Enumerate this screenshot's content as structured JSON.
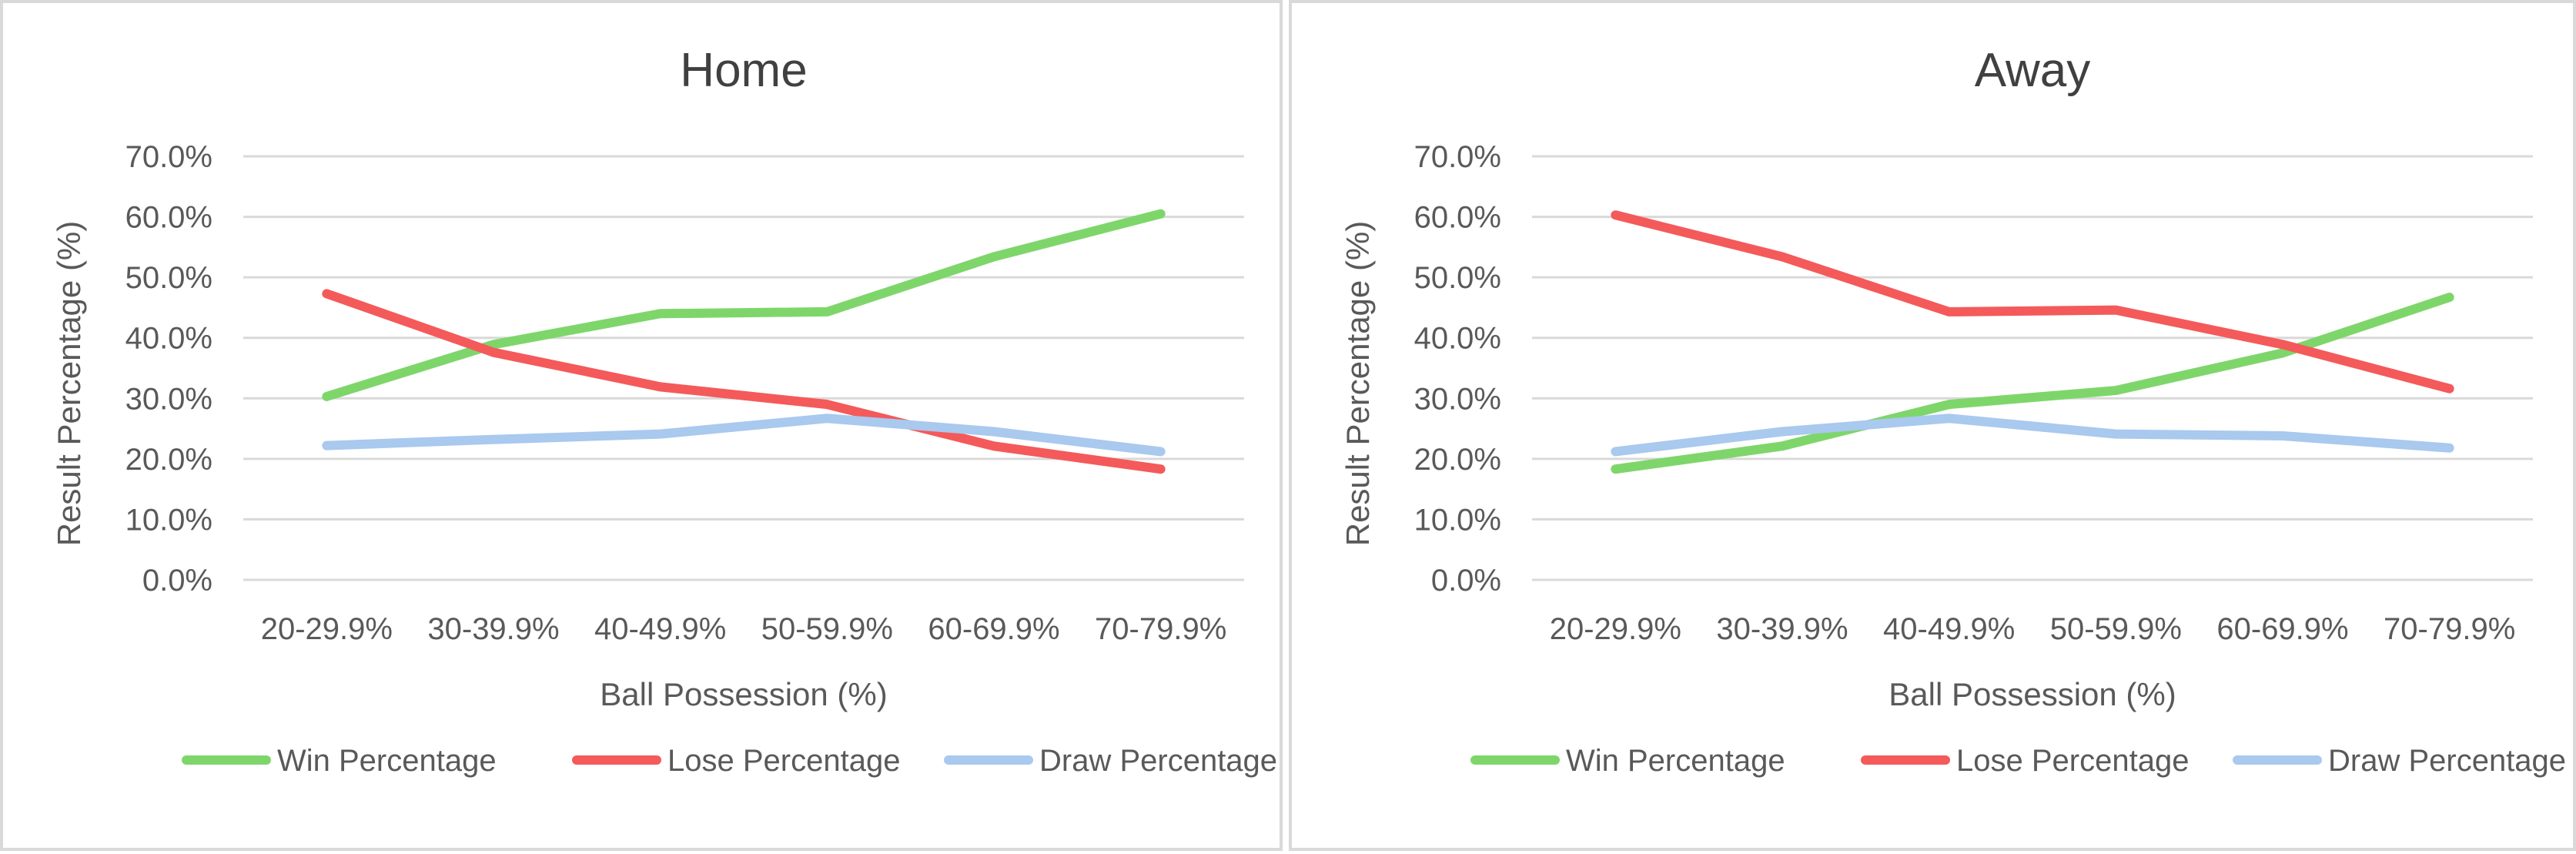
{
  "chart_data": [
    {
      "type": "line",
      "title": "Home",
      "xlabel": "Ball Possession (%)",
      "ylabel": "Result Percentage (%)",
      "categories": [
        "20-29.9%",
        "30-39.9%",
        "40-49.9%",
        "50-59.9%",
        "60-69.9%",
        "70-79.9%"
      ],
      "ylim": [
        0,
        70
      ],
      "yticks": [
        "0.0%",
        "10.0%",
        "20.0%",
        "30.0%",
        "40.0%",
        "50.0%",
        "60.0%",
        "70.0%"
      ],
      "grid": true,
      "legend": "bottom",
      "series": [
        {
          "name": "Win Percentage",
          "color": "#7ed66b",
          "values": [
            30.3,
            38.9,
            44.0,
            44.3,
            53.4,
            60.5
          ]
        },
        {
          "name": "Lose Percentage",
          "color": "#f45a5a",
          "values": [
            47.3,
            37.6,
            31.9,
            29.0,
            22.1,
            18.3
          ]
        },
        {
          "name": "Draw Percentage",
          "color": "#a9c9ee",
          "values": [
            22.2,
            23.2,
            24.1,
            26.7,
            24.5,
            21.2
          ]
        }
      ]
    },
    {
      "type": "line",
      "title": "Away",
      "xlabel": "Ball Possession (%)",
      "ylabel": "Result Percentage (%)",
      "categories": [
        "20-29.9%",
        "30-39.9%",
        "40-49.9%",
        "50-59.9%",
        "60-69.9%",
        "70-79.9%"
      ],
      "ylim": [
        0,
        70
      ],
      "yticks": [
        "0.0%",
        "10.0%",
        "20.0%",
        "30.0%",
        "40.0%",
        "50.0%",
        "60.0%",
        "70.0%"
      ],
      "grid": true,
      "legend": "bottom",
      "series": [
        {
          "name": "Win Percentage",
          "color": "#7ed66b",
          "values": [
            18.3,
            22.1,
            29.0,
            31.3,
            37.5,
            46.7
          ]
        },
        {
          "name": "Lose Percentage",
          "color": "#f45a5a",
          "values": [
            60.3,
            53.4,
            44.3,
            44.6,
            38.9,
            31.6
          ]
        },
        {
          "name": "Draw Percentage",
          "color": "#a9c9ee",
          "values": [
            21.2,
            24.5,
            26.7,
            24.1,
            23.8,
            21.8
          ]
        }
      ]
    }
  ]
}
